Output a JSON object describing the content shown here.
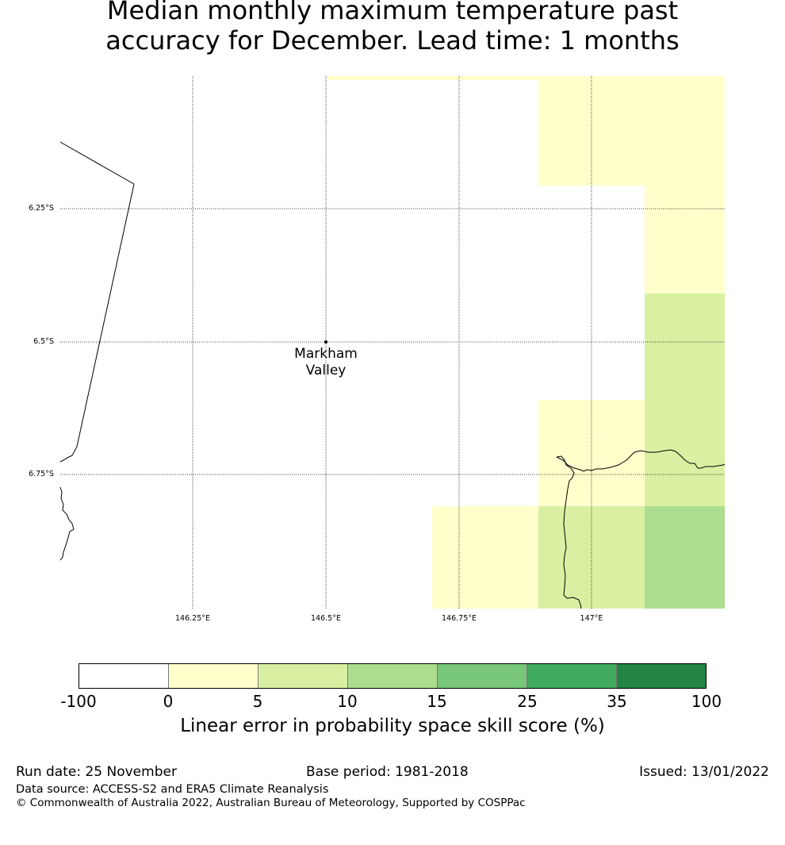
{
  "title_line1": "Median monthly maximum temperature past",
  "title_line2": "accuracy for December. Lead time: 1 months",
  "lat_labels": [
    "6.25°S",
    "6.5°S",
    "6.75°S"
  ],
  "lon_labels": [
    "146.25°E",
    "146.5°E",
    "146.75°E",
    "147°E"
  ],
  "place_label": {
    "name": "Markham Valley",
    "lat": -6.5,
    "lon": 146.5
  },
  "map_grid": {
    "lon_range": [
      146.0,
      147.25
    ],
    "lat_range": [
      -6.0,
      -7.0
    ],
    "cell_deg": 0.2
  },
  "colorbar": {
    "ticks": [
      "-100",
      "0",
      "5",
      "10",
      "15",
      "25",
      "35",
      "100"
    ],
    "colors": [
      "#ffffff",
      "#ffffcc",
      "#d9f0a3",
      "#addd8e",
      "#78c679",
      "#41ab5d",
      "#238443"
    ],
    "label": "Linear error in probability space skill score (%)"
  },
  "footer": {
    "run_date": "Run date: 25 November",
    "base_period": "Base period: 1981-2018",
    "issued": "Issued: 13/01/2022",
    "data_source": "Data source: ACCESS-S2 and ERA5 Climate Reanalysis",
    "copyright": "© Commonwealth of Australia 2022, Australian Bureau of Meteorology, Supported by COSPPac"
  }
}
